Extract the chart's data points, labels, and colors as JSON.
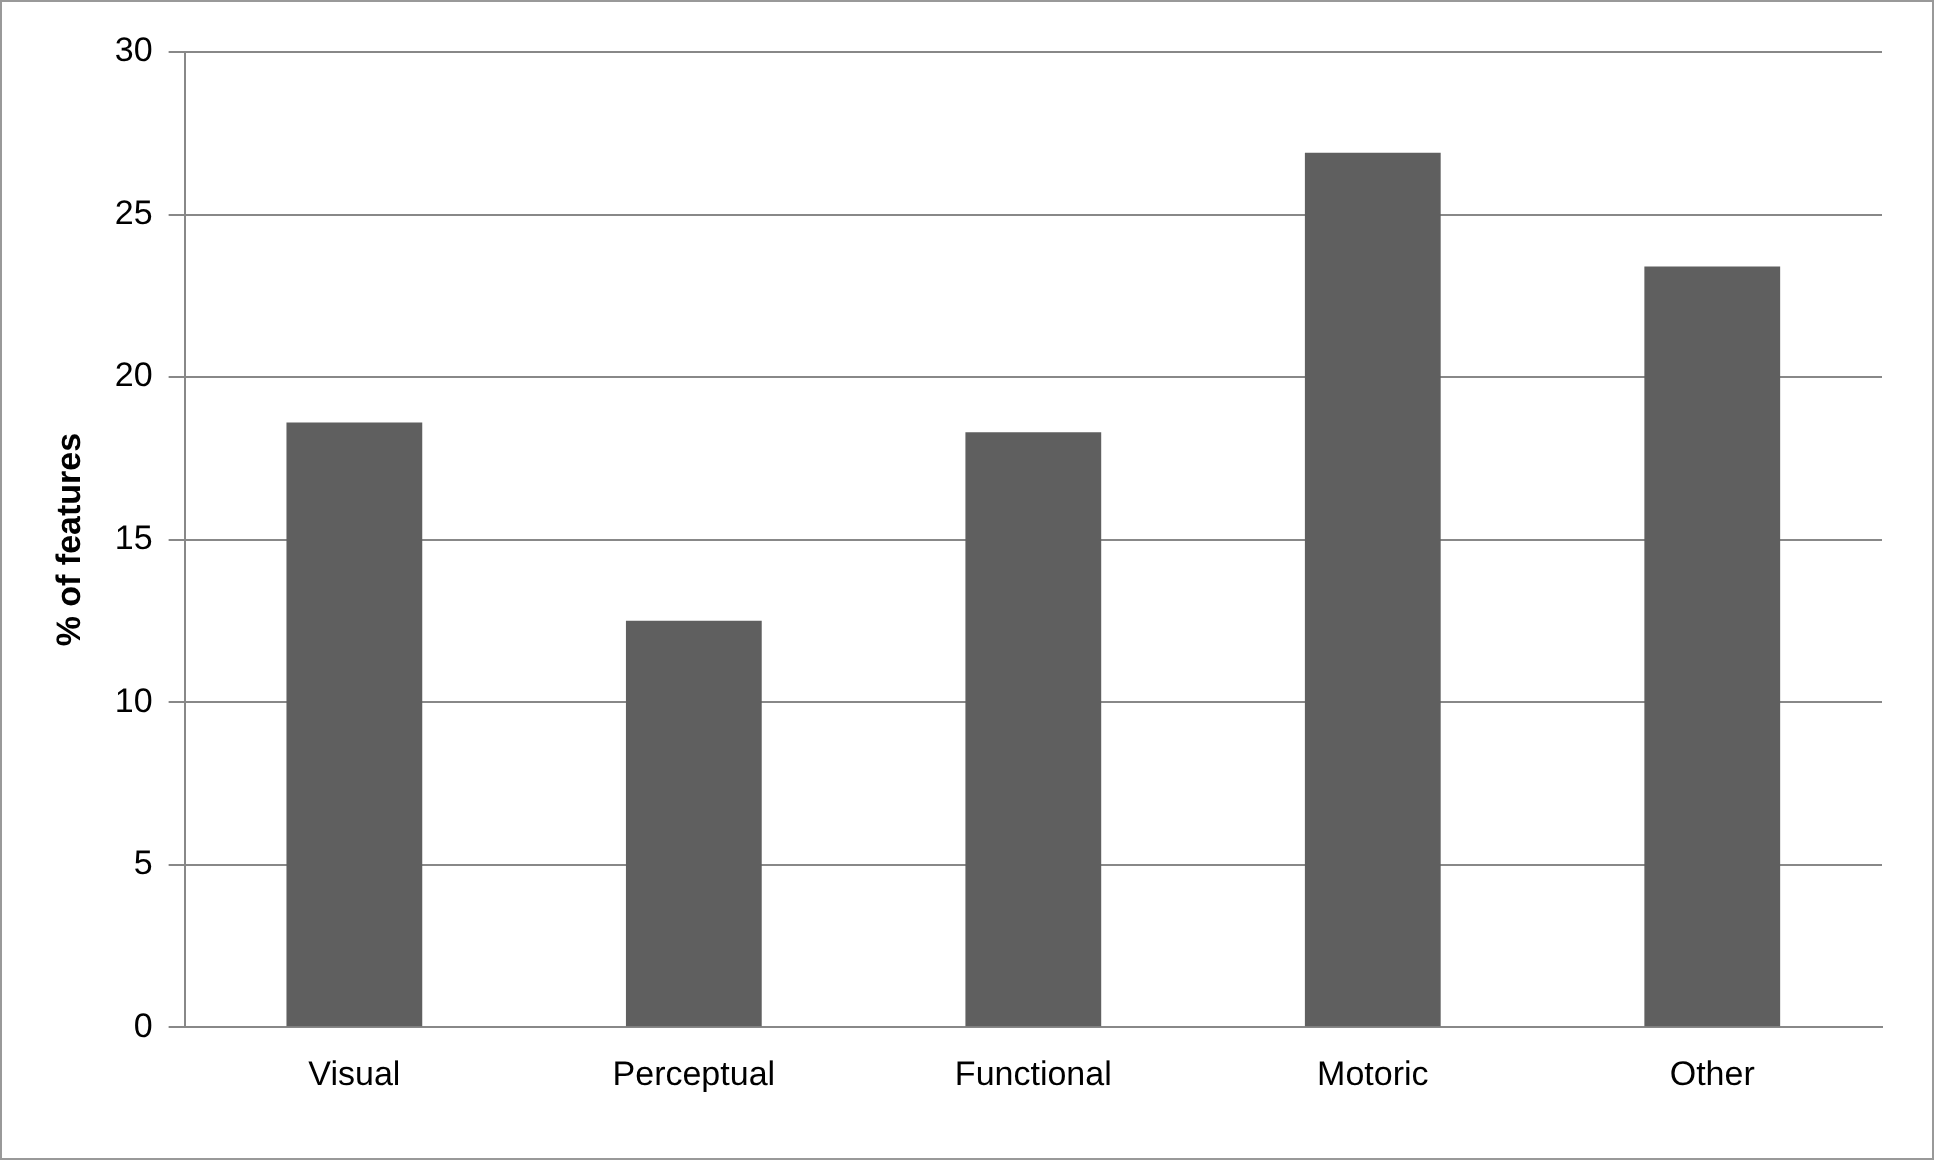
{
  "chart_data": {
    "type": "bar",
    "ylabel": "% of features",
    "categories": [
      "Visual",
      "Perceptual",
      "Functional",
      "Motoric",
      "Other"
    ],
    "values": [
      18.6,
      12.5,
      18.3,
      26.9,
      23.4
    ],
    "color": "#5f5f5f",
    "ylim": [
      0,
      30
    ],
    "yticks": [
      0,
      5,
      10,
      15,
      20,
      25,
      30
    ],
    "grid": "y",
    "legend": false
  }
}
